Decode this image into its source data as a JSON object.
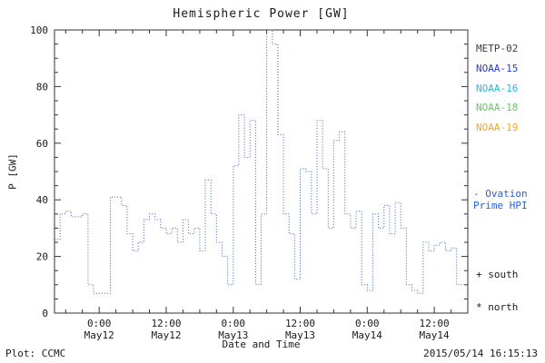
{
  "title": "Hemispheric Power [GW]",
  "footer": {
    "source": "Plot: CCMC",
    "timestamp": "2015/05/14 16:15:13"
  },
  "legend": {
    "satellites": [
      {
        "label": "METP-02",
        "color": "#3d3d3d"
      },
      {
        "label": "NOAA-15",
        "color": "#2a3cc4"
      },
      {
        "label": "NOAA-16",
        "color": "#2fb6d8"
      },
      {
        "label": "NOAA-18",
        "color": "#63c763"
      },
      {
        "label": "NOAA-19",
        "color": "#f5a623"
      }
    ],
    "line_label_line1": "- Ovation",
    "line_label_line2": "Prime HPI",
    "line_label_color": "#2a5fd0",
    "south_label": "+ south",
    "north_label": "* north"
  },
  "chart_data": {
    "type": "line",
    "style": "dotted-step",
    "title": "Hemispheric Power [GW]",
    "xlabel": "Date and Time",
    "ylabel": "P [GW]",
    "ylim": [
      0,
      100
    ],
    "y_ticks": [
      0,
      20,
      40,
      60,
      80,
      100
    ],
    "x_hours_total": 74,
    "x_ticks": [
      {
        "h": 8,
        "time": "0:00",
        "date": "May12"
      },
      {
        "h": 20,
        "time": "12:00",
        "date": "May12"
      },
      {
        "h": 32,
        "time": "0:00",
        "date": "May13"
      },
      {
        "h": 44,
        "time": "12:00",
        "date": "May13"
      },
      {
        "h": 56,
        "time": "0:00",
        "date": "May14"
      },
      {
        "h": 68,
        "time": "12:00",
        "date": "May14"
      }
    ],
    "series": [
      {
        "name": "Ovation Prime HPI",
        "color": "#3a5fb5",
        "step_hours": 1,
        "values": [
          26,
          35,
          36,
          34,
          34,
          35,
          10,
          7,
          7,
          7,
          41,
          41,
          38,
          28,
          22,
          25,
          33,
          35,
          33,
          30,
          28,
          30,
          25,
          33,
          28,
          30,
          22,
          47,
          35,
          25,
          20,
          10,
          52,
          70,
          55,
          68,
          10,
          35,
          100,
          95,
          63,
          35,
          28,
          12,
          51,
          50,
          35,
          68,
          51,
          30,
          61,
          64,
          35,
          30,
          36,
          10,
          8,
          35,
          30,
          38,
          28,
          39,
          30,
          10,
          8,
          7,
          25,
          22,
          24,
          25,
          22,
          23,
          10,
          10
        ]
      }
    ],
    "legend_position": "right",
    "grid": false
  }
}
